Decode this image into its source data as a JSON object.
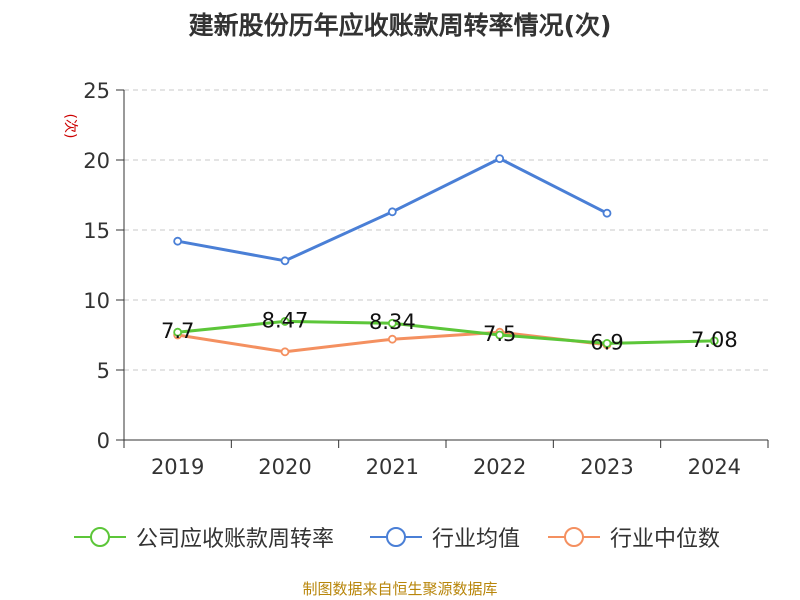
{
  "chart_data": {
    "type": "line",
    "title": "建新股份历年应收账款周转率情况(次)",
    "ylabel": "(次)",
    "xlabel": "",
    "categories": [
      "2019",
      "2020",
      "2021",
      "2022",
      "2023",
      "2024"
    ],
    "ylim": [
      0,
      25
    ],
    "yticks": [
      0,
      5,
      10,
      15,
      20,
      25
    ],
    "grid": true,
    "legend_position": "bottom",
    "series": [
      {
        "name": "公司应收账款周转率",
        "color": "#5cc639",
        "values": [
          7.7,
          8.47,
          8.34,
          7.5,
          6.9,
          7.08
        ],
        "show_labels": true
      },
      {
        "name": "行业均值",
        "color": "#4a7fd6",
        "values": [
          14.2,
          12.8,
          16.3,
          20.1,
          16.2,
          null
        ],
        "show_labels": false
      },
      {
        "name": "行业中位数",
        "color": "#f49060",
        "values": [
          7.5,
          6.3,
          7.2,
          7.7,
          6.8,
          null
        ],
        "show_labels": false
      }
    ],
    "source": "制图数据来自恒生聚源数据库"
  }
}
